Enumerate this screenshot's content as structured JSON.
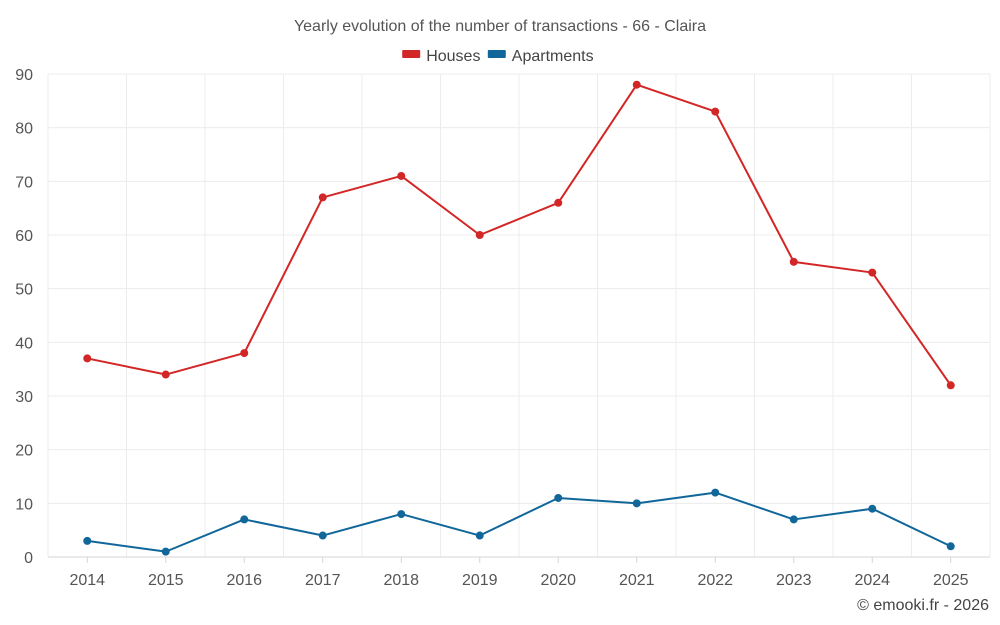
{
  "chart_data": {
    "type": "line",
    "title": "Yearly evolution of the number of transactions - 66 - Claira",
    "xlabel": "",
    "ylabel": "",
    "categories": [
      "2014",
      "2015",
      "2016",
      "2017",
      "2018",
      "2019",
      "2020",
      "2021",
      "2022",
      "2023",
      "2024",
      "2025"
    ],
    "ylim": [
      0,
      90
    ],
    "yticks": [
      0,
      10,
      20,
      30,
      40,
      50,
      60,
      70,
      80,
      90
    ],
    "grid": true,
    "legend_position": "top-center",
    "series": [
      {
        "name": "Houses",
        "color": "#d32626",
        "values": [
          37,
          34,
          38,
          67,
          71,
          60,
          66,
          88,
          83,
          55,
          53,
          32
        ]
      },
      {
        "name": "Apartments",
        "color": "#11679a",
        "values": [
          3,
          1,
          7,
          4,
          8,
          4,
          11,
          10,
          12,
          7,
          9,
          2
        ]
      }
    ]
  },
  "credit": "© emooki.fr - 2026"
}
